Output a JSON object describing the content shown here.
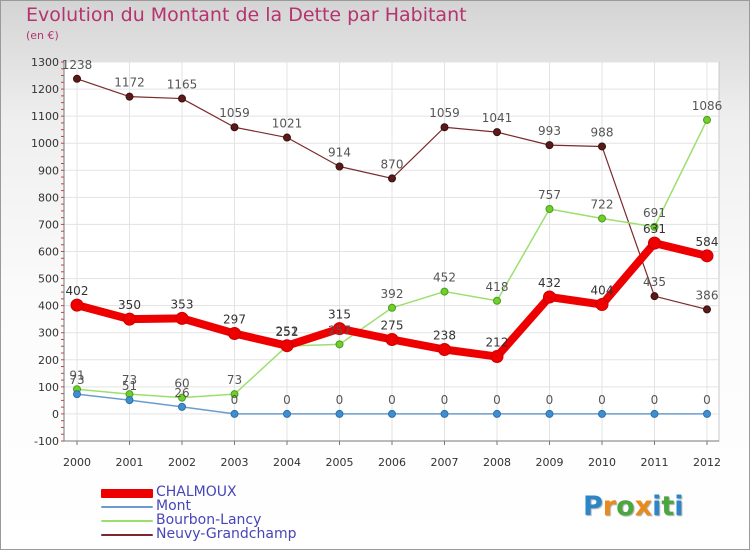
{
  "title": "Evolution du Montant de la Dette par Habitant",
  "subtitle": "(en €)",
  "logo": {
    "text": "Proxiti",
    "letters": [
      "P",
      "r",
      "o",
      "x",
      "i",
      "t",
      "i"
    ],
    "colors": [
      "#2b86c8",
      "#e98b1c",
      "#4aa63d",
      "#e98b1c",
      "#2b86c8",
      "#4aa63d",
      "#2b86c8"
    ]
  },
  "chart_data": {
    "type": "line",
    "categories": [
      "2000",
      "2001",
      "2002",
      "2003",
      "2004",
      "2005",
      "2006",
      "2007",
      "2008",
      "2009",
      "2010",
      "2011",
      "2012"
    ],
    "ylim": [
      -100,
      1300
    ],
    "yticks": [
      "-100",
      "0",
      "100",
      "200",
      "300",
      "400",
      "500",
      "600",
      "700",
      "800",
      "900",
      "1000",
      "1100",
      "1200",
      "1300"
    ],
    "ytick_values": [
      -100,
      0,
      100,
      200,
      300,
      400,
      500,
      600,
      700,
      800,
      900,
      1000,
      1100,
      1200,
      1300
    ],
    "grid": true,
    "legend_position": "bottom-left",
    "series": [
      {
        "name": "Neuvy-Grandchamp",
        "color": "#7a2a2a",
        "values": [
          1238,
          1172,
          1165,
          1059,
          1021,
          914,
          870,
          1059,
          1041,
          993,
          988,
          435,
          386
        ],
        "labels": [
          "1238",
          "1172",
          "1165",
          "1059",
          "1021",
          "914",
          "870",
          "1059",
          "1041",
          "993",
          "988",
          "435",
          "386"
        ]
      },
      {
        "name": "Bourbon-Lancy",
        "color": "#9be06e",
        "values": [
          91,
          73,
          60,
          73,
          251,
          257,
          392,
          452,
          418,
          757,
          722,
          691,
          1086
        ],
        "labels": [
          "91",
          "73",
          "60",
          "73",
          "251",
          "257",
          "392",
          "452",
          "418",
          "757",
          "722",
          "691",
          "1086"
        ]
      },
      {
        "name": "Mont",
        "color": "#6a9ccf",
        "values": [
          73,
          51,
          26,
          0,
          0,
          0,
          0,
          0,
          0,
          0,
          0,
          0,
          0
        ],
        "labels": [
          "73",
          "51",
          "26",
          "0",
          "0",
          "0",
          "0",
          "0",
          "0",
          "0",
          "0",
          "0",
          "0"
        ]
      },
      {
        "name": "CHALMOUX",
        "color": "#ee0000",
        "values": [
          402,
          350,
          353,
          297,
          252,
          315,
          275,
          238,
          212,
          432,
          404,
          631,
          584
        ],
        "labels": [
          "402",
          "350",
          "353",
          "297",
          "252",
          "315",
          "275",
          "238",
          "212",
          "432",
          "404",
          "631",
          "584"
        ]
      }
    ],
    "legend": [
      {
        "name": "CHALMOUX",
        "color": "#ee0000"
      },
      {
        "name": "Mont",
        "color": "#6a9ccf"
      },
      {
        "name": "Bourbon-Lancy",
        "color": "#9be06e"
      },
      {
        "name": "Neuvy-Grandchamp",
        "color": "#7a2a2a"
      }
    ]
  }
}
